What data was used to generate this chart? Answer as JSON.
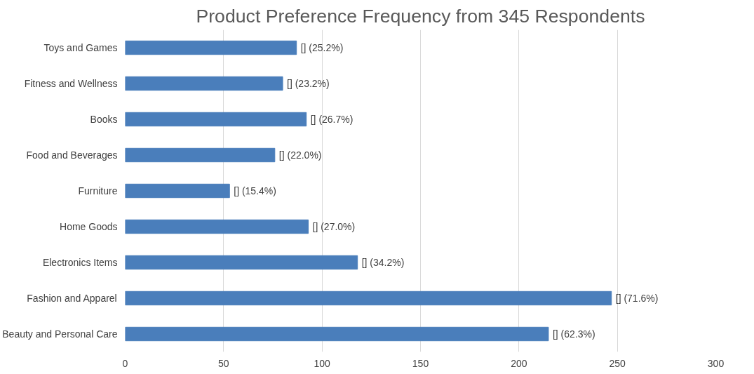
{
  "chart_data": {
    "type": "bar",
    "orientation": "horizontal",
    "title": "Product Preference Frequency from 345 Respondents",
    "categories": [
      "Toys and Games",
      "Fitness and Wellness",
      "Books",
      "Food and Beverages",
      "Furniture",
      "Home Goods",
      "Electronics Items",
      "Fashion and Apparel",
      "Beauty and Personal Care"
    ],
    "values": [
      87,
      80,
      92,
      76,
      53,
      93,
      118,
      247,
      215
    ],
    "annotations": [
      {
        "text": "[] (25.2%)",
        "x": 87,
        "y": "Toys and Games"
      },
      {
        "text": "[] (23.2%)",
        "x": 80,
        "y": "Fitness and Wellness"
      },
      {
        "text": "[] (26.7%)",
        "x": 92,
        "y": "Books"
      },
      {
        "text": "[] (22.0%)",
        "x": 76,
        "y": "Food and Beverages"
      },
      {
        "text": "[] (15.4%)",
        "x": 53,
        "y": "Furniture"
      },
      {
        "text": "[] (27.0%)",
        "x": 93,
        "y": "Home Goods"
      },
      {
        "text": "[] (34.2%)",
        "x": 118,
        "y": "Electronics Items"
      },
      {
        "text": "[] (71.6%)",
        "x": 247,
        "y": "Fashion and Apparel"
      },
      {
        "text": "[] (62.3%)",
        "x": 215,
        "y": "Beauty and Personal Care"
      }
    ],
    "color": "#4a7ebb",
    "xlim": [
      0,
      300
    ],
    "xticks": [
      0,
      50,
      100,
      150,
      200,
      250,
      300
    ],
    "grid": "x"
  }
}
